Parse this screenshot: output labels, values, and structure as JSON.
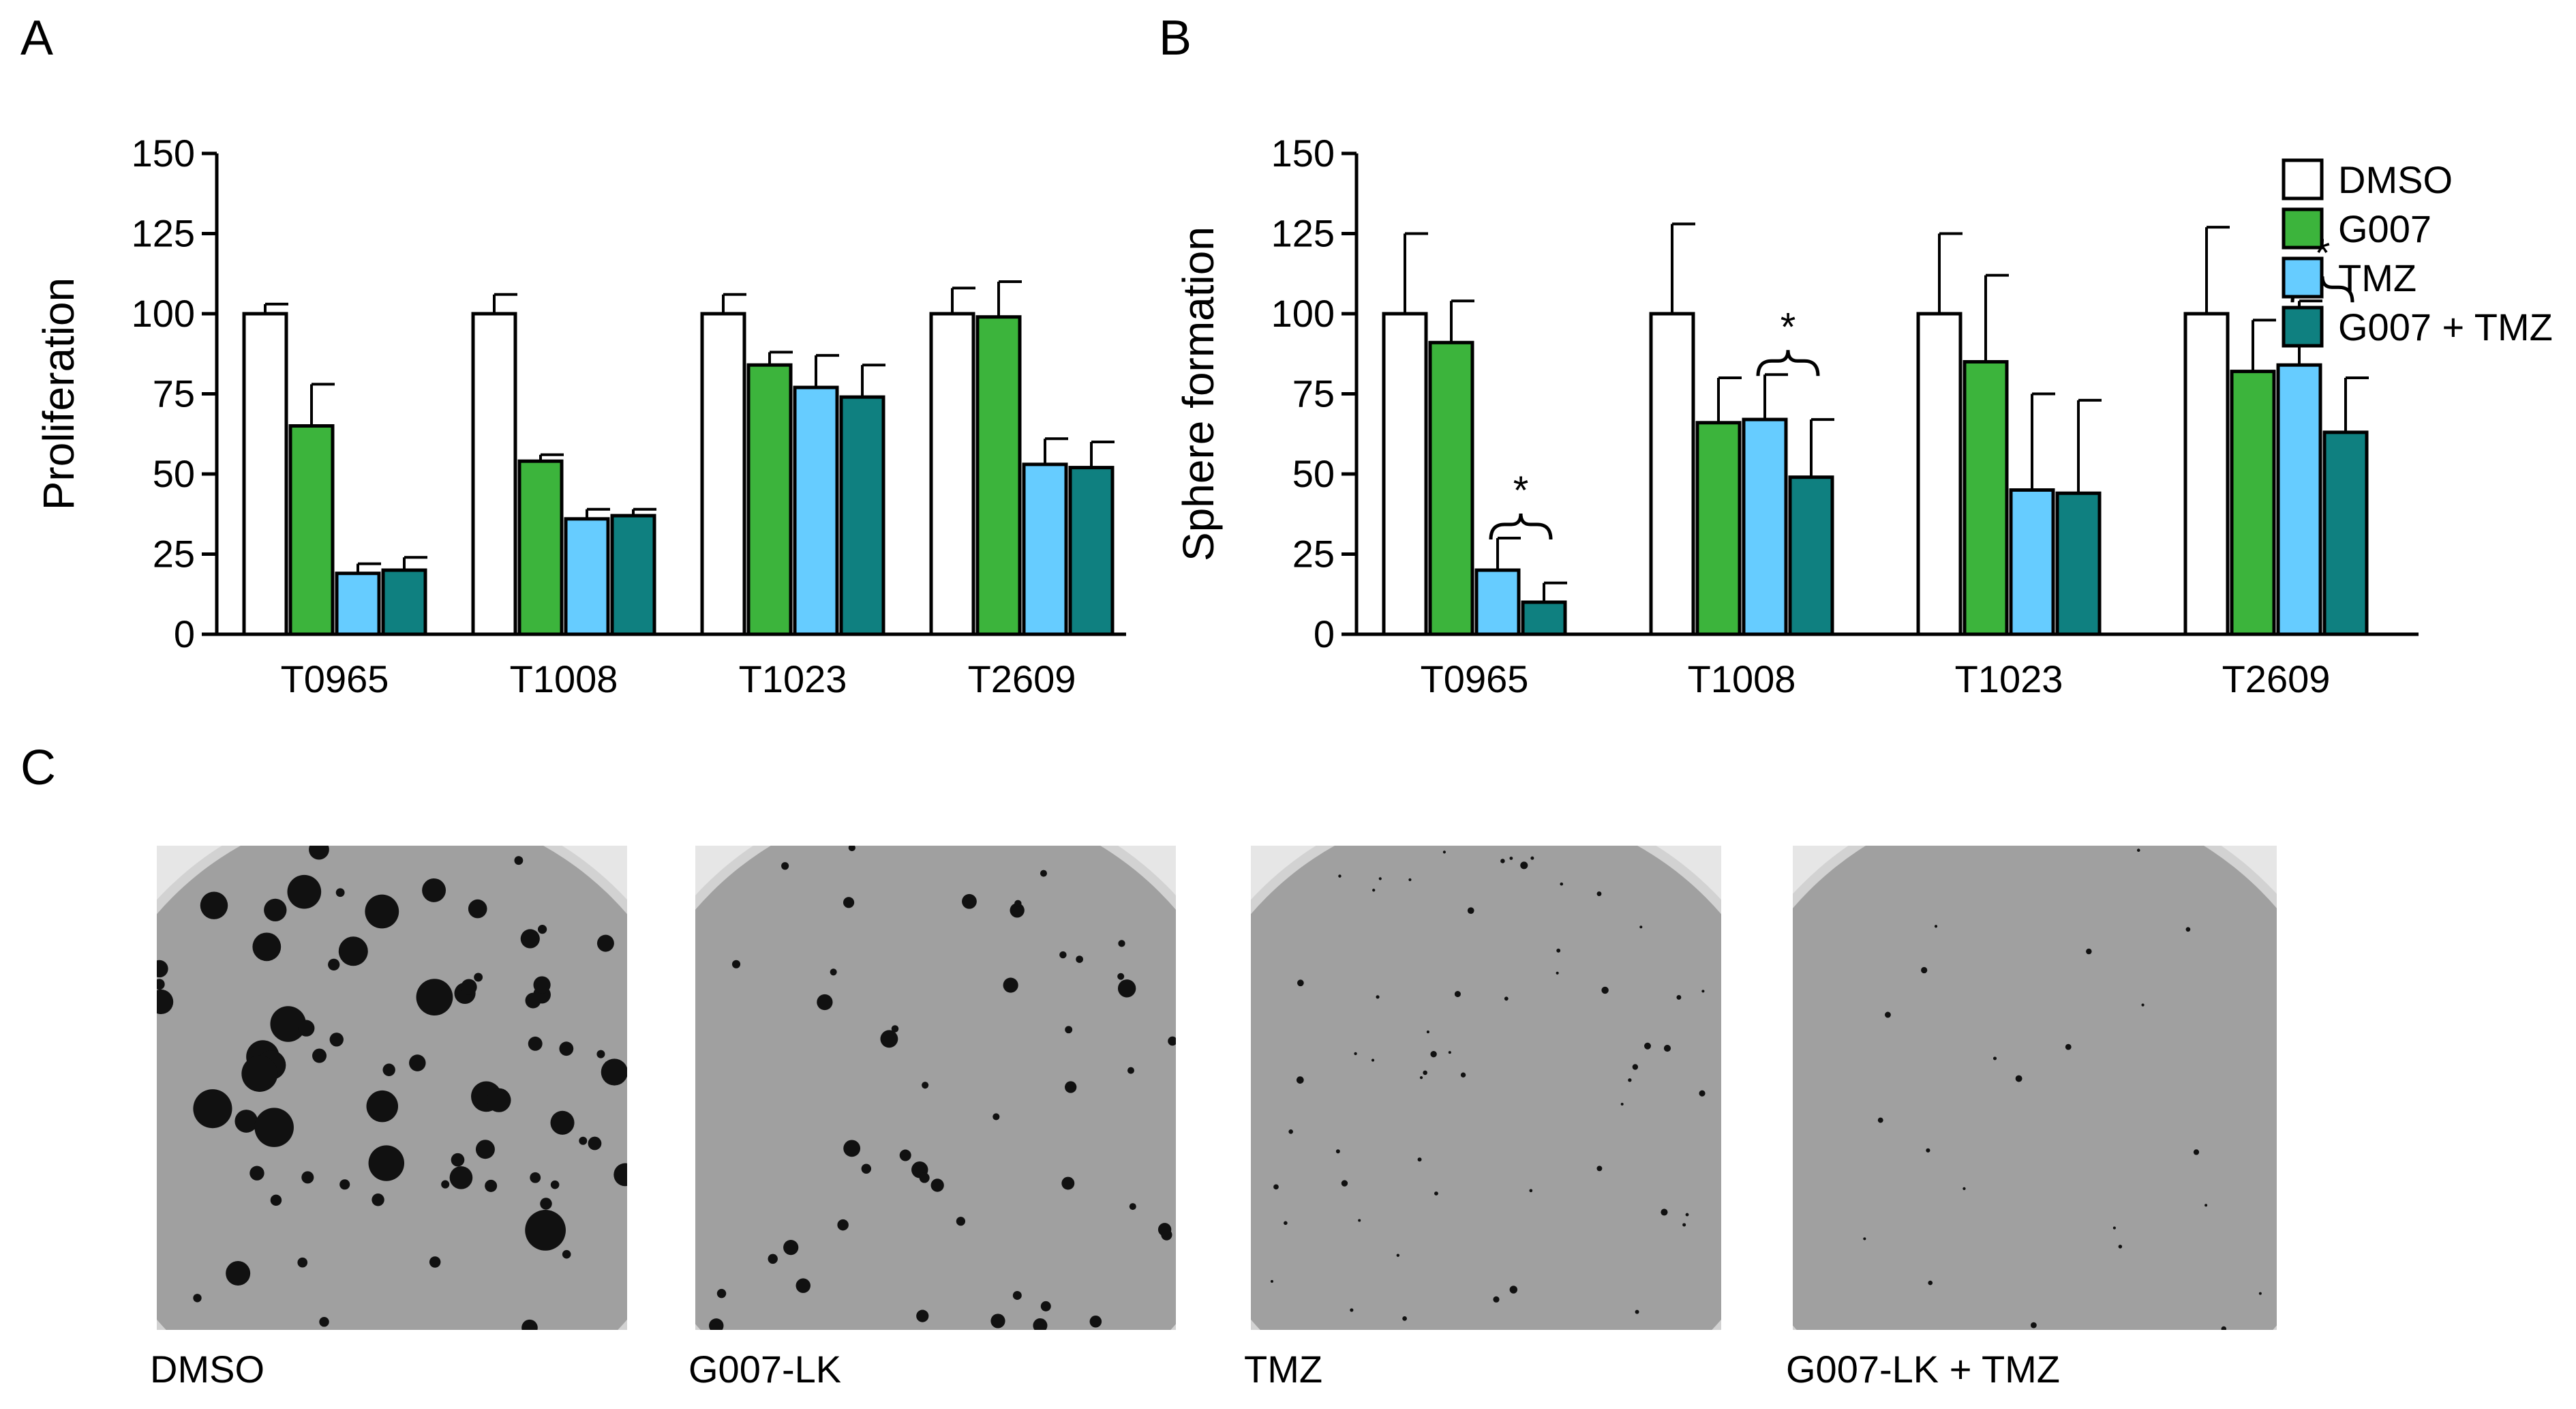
{
  "panel_letters": {
    "a": "A",
    "b": "B",
    "c": "C"
  },
  "colors": {
    "DMSO": "#ffffff",
    "G007": "#3cb43c",
    "TMZ": "#66ccff",
    "G007 + TMZ": "#0f8080",
    "axis": "#000000"
  },
  "chart_data": [
    {
      "type": "bar",
      "panel": "A",
      "ylabel": "Proliferation",
      "ylim": [
        0,
        150
      ],
      "yticks": [
        0,
        25,
        50,
        75,
        100,
        125,
        150
      ],
      "categories": [
        "T0965",
        "T1008",
        "T1023",
        "T2609"
      ],
      "error_bars": true,
      "series": [
        {
          "name": "DMSO",
          "values": [
            100,
            100,
            100,
            100
          ],
          "errors": [
            3,
            6,
            6,
            8
          ]
        },
        {
          "name": "G007",
          "values": [
            65,
            54,
            84,
            99
          ],
          "errors": [
            13,
            2,
            4,
            11
          ]
        },
        {
          "name": "TMZ",
          "values": [
            19,
            36,
            77,
            53
          ],
          "errors": [
            3,
            3,
            10,
            8
          ]
        },
        {
          "name": "G007 + TMZ",
          "values": [
            20,
            37,
            74,
            52
          ],
          "errors": [
            4,
            2,
            10,
            8
          ]
        }
      ]
    },
    {
      "type": "bar",
      "panel": "B",
      "ylabel": "Sphere formation",
      "ylim": [
        0,
        150
      ],
      "yticks": [
        0,
        25,
        50,
        75,
        100,
        125,
        150
      ],
      "categories": [
        "T0965",
        "T1008",
        "T1023",
        "T2609"
      ],
      "error_bars": true,
      "legend_position": "top-right",
      "legend": [
        "DMSO",
        "G007",
        "TMZ",
        "G007 + TMZ"
      ],
      "series": [
        {
          "name": "DMSO",
          "values": [
            100,
            100,
            100,
            100
          ],
          "errors": [
            25,
            28,
            25,
            27
          ]
        },
        {
          "name": "G007",
          "values": [
            91,
            66,
            85,
            82
          ],
          "errors": [
            13,
            14,
            27,
            16
          ]
        },
        {
          "name": "TMZ",
          "values": [
            20,
            67,
            45,
            84
          ],
          "errors": [
            10,
            14,
            30,
            20
          ]
        },
        {
          "name": "G007 + TMZ",
          "values": [
            10,
            49,
            44,
            63
          ],
          "errors": [
            6,
            18,
            29,
            17
          ]
        }
      ],
      "significance": [
        {
          "category": "T0965",
          "from_series": "TMZ",
          "to_series": "G007 + TMZ",
          "label": "*"
        },
        {
          "category": "T1008",
          "from_series": "TMZ",
          "to_series": "G007 + TMZ",
          "label": "*"
        },
        {
          "category": "T2609",
          "from_series": "TMZ",
          "to_series": "G007 + TMZ",
          "label": "*"
        }
      ]
    }
  ],
  "plates": [
    {
      "label": "DMSO",
      "colony_density": "high"
    },
    {
      "label": "G007-LK",
      "colony_density": "medium"
    },
    {
      "label": "TMZ",
      "colony_density": "low"
    },
    {
      "label": "G007-LK + TMZ",
      "colony_density": "very-low"
    }
  ]
}
